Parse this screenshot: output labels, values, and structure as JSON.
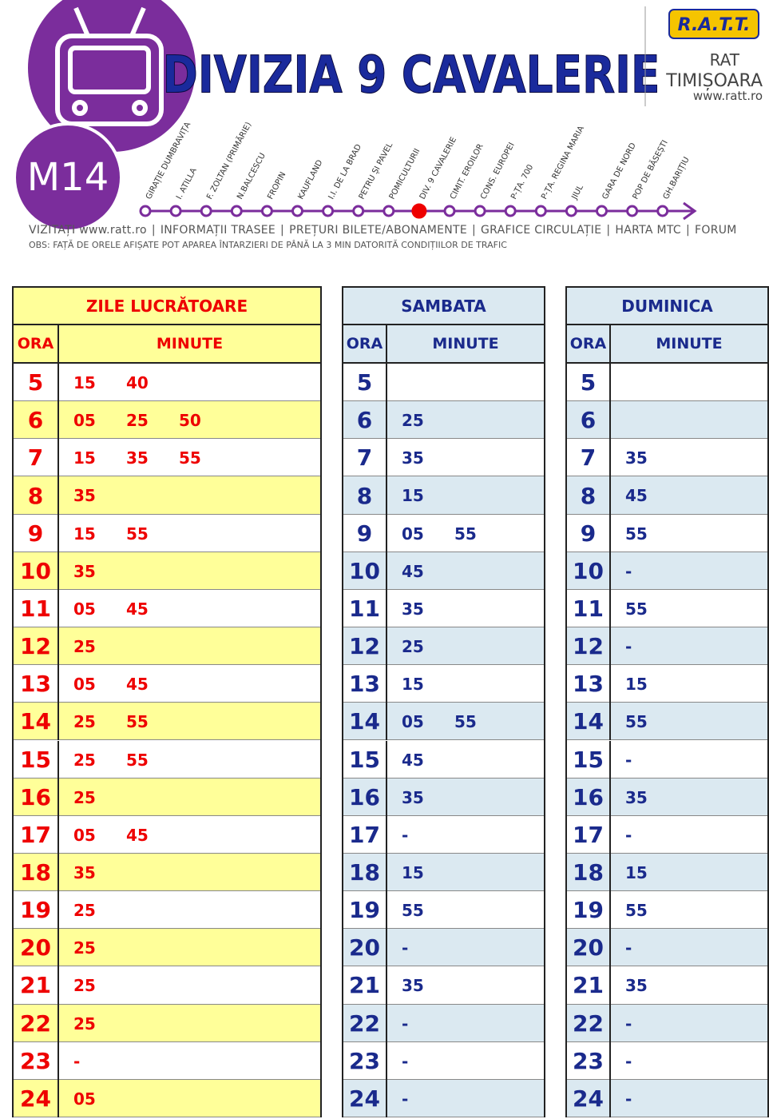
{
  "header": {
    "route": "M14",
    "stop": "DIVIZIA 9 CAVALERIE",
    "logo": "R.A.T.T.",
    "company": [
      "RAT",
      "TIMIȘOARA",
      "www.ratt.ro"
    ]
  },
  "route_line": {
    "current": 9,
    "stops": [
      "GIRAȚIE DUMBRAVIȚA",
      "I. ATILLA",
      "F. ZOLTAN (PRIMĂRIE)",
      "N.BALCESCU",
      "FROPIN",
      "KAUFLAND",
      "I.I. DE LA BRAD",
      "PETRU ȘI PAVEL",
      "POMICULTURII",
      "DIV. 9 CAVALERIE",
      "CIMIT. EROILOR",
      "CONS. EUROPEI",
      "P-ȚA. 700",
      "P-ȚA. REGINA MARIA",
      "JIUL",
      "GARA DE NORD",
      "POP DE BĂSEȘTI",
      "GH.BARIȚIU"
    ]
  },
  "links": [
    "VIZITAȚI www.ratt.ro",
    "INFORMAȚII TRASEE",
    "PREȚURI BILETE/ABONAMENTE",
    "GRAFICE CIRCULAȚIE",
    "HARTA MTC",
    "FORUM"
  ],
  "note": "OBS: FAȚĂ DE ORELE AFIȘATE POT APAREA ÎNTARZIERI DE PÂNĂ LA 3 MIN DATORITĂ CONDIȚIILOR DE TRAFIC",
  "tables": [
    {
      "title": "ZILE LUCRĂTOARE",
      "hour_header": "ORA",
      "minute_header": "MINUTE",
      "rows": [
        {
          "hour": "5",
          "minutes": [
            "15",
            "40"
          ]
        },
        {
          "hour": "6",
          "minutes": [
            "05",
            "25",
            "50"
          ]
        },
        {
          "hour": "7",
          "minutes": [
            "15",
            "35",
            "55"
          ]
        },
        {
          "hour": "8",
          "minutes": [
            "35"
          ]
        },
        {
          "hour": "9",
          "minutes": [
            "15",
            "55"
          ]
        },
        {
          "hour": "10",
          "minutes": [
            "35"
          ]
        },
        {
          "hour": "11",
          "minutes": [
            "05",
            "45"
          ]
        },
        {
          "hour": "12",
          "minutes": [
            "25"
          ]
        },
        {
          "hour": "13",
          "minutes": [
            "05",
            "45"
          ]
        },
        {
          "hour": "14",
          "minutes": [
            "25",
            "55"
          ]
        },
        {
          "hour": "15",
          "minutes": [
            "25",
            "55"
          ]
        },
        {
          "hour": "16",
          "minutes": [
            "25"
          ]
        },
        {
          "hour": "17",
          "minutes": [
            "05",
            "45"
          ]
        },
        {
          "hour": "18",
          "minutes": [
            "35"
          ]
        },
        {
          "hour": "19",
          "minutes": [
            "25"
          ]
        },
        {
          "hour": "20",
          "minutes": [
            "25"
          ]
        },
        {
          "hour": "21",
          "minutes": [
            "25"
          ]
        },
        {
          "hour": "22",
          "minutes": [
            "25"
          ]
        },
        {
          "hour": "23",
          "minutes": [
            "-"
          ]
        },
        {
          "hour": "24",
          "minutes": [
            "05"
          ]
        }
      ]
    },
    {
      "title": "SAMBATA",
      "hour_header": "ORA",
      "minute_header": "MINUTE",
      "rows": [
        {
          "hour": "5",
          "minutes": []
        },
        {
          "hour": "6",
          "minutes": [
            "25"
          ]
        },
        {
          "hour": "7",
          "minutes": [
            "35"
          ]
        },
        {
          "hour": "8",
          "minutes": [
            "15"
          ]
        },
        {
          "hour": "9",
          "minutes": [
            "05",
            "55"
          ]
        },
        {
          "hour": "10",
          "minutes": [
            "45"
          ]
        },
        {
          "hour": "11",
          "minutes": [
            "35"
          ]
        },
        {
          "hour": "12",
          "minutes": [
            "25"
          ]
        },
        {
          "hour": "13",
          "minutes": [
            "15"
          ]
        },
        {
          "hour": "14",
          "minutes": [
            "05",
            "55"
          ]
        },
        {
          "hour": "15",
          "minutes": [
            "45"
          ]
        },
        {
          "hour": "16",
          "minutes": [
            "35"
          ]
        },
        {
          "hour": "17",
          "minutes": [
            "-"
          ]
        },
        {
          "hour": "18",
          "minutes": [
            "15"
          ]
        },
        {
          "hour": "19",
          "minutes": [
            "55"
          ]
        },
        {
          "hour": "20",
          "minutes": [
            "-"
          ]
        },
        {
          "hour": "21",
          "minutes": [
            "35"
          ]
        },
        {
          "hour": "22",
          "minutes": [
            "-"
          ]
        },
        {
          "hour": "23",
          "minutes": [
            "-"
          ]
        },
        {
          "hour": "24",
          "minutes": [
            "-"
          ]
        }
      ]
    },
    {
      "title": "DUMINICA",
      "hour_header": "ORA",
      "minute_header": "MINUTE",
      "rows": [
        {
          "hour": "5",
          "minutes": []
        },
        {
          "hour": "6",
          "minutes": []
        },
        {
          "hour": "7",
          "minutes": [
            "35"
          ]
        },
        {
          "hour": "8",
          "minutes": [
            "45"
          ]
        },
        {
          "hour": "9",
          "minutes": [
            "55"
          ]
        },
        {
          "hour": "10",
          "minutes": [
            "-"
          ]
        },
        {
          "hour": "11",
          "minutes": [
            "55"
          ]
        },
        {
          "hour": "12",
          "minutes": [
            "-"
          ]
        },
        {
          "hour": "13",
          "minutes": [
            "15"
          ]
        },
        {
          "hour": "14",
          "minutes": [
            "55"
          ]
        },
        {
          "hour": "15",
          "minutes": [
            "-"
          ]
        },
        {
          "hour": "16",
          "minutes": [
            "35"
          ]
        },
        {
          "hour": "17",
          "minutes": [
            "-"
          ]
        },
        {
          "hour": "18",
          "minutes": [
            "15"
          ]
        },
        {
          "hour": "19",
          "minutes": [
            "55"
          ]
        },
        {
          "hour": "20",
          "minutes": [
            "-"
          ]
        },
        {
          "hour": "21",
          "minutes": [
            "35"
          ]
        },
        {
          "hour": "22",
          "minutes": [
            "-"
          ]
        },
        {
          "hour": "23",
          "minutes": [
            "-"
          ]
        },
        {
          "hour": "24",
          "minutes": [
            "-"
          ]
        }
      ]
    }
  ]
}
